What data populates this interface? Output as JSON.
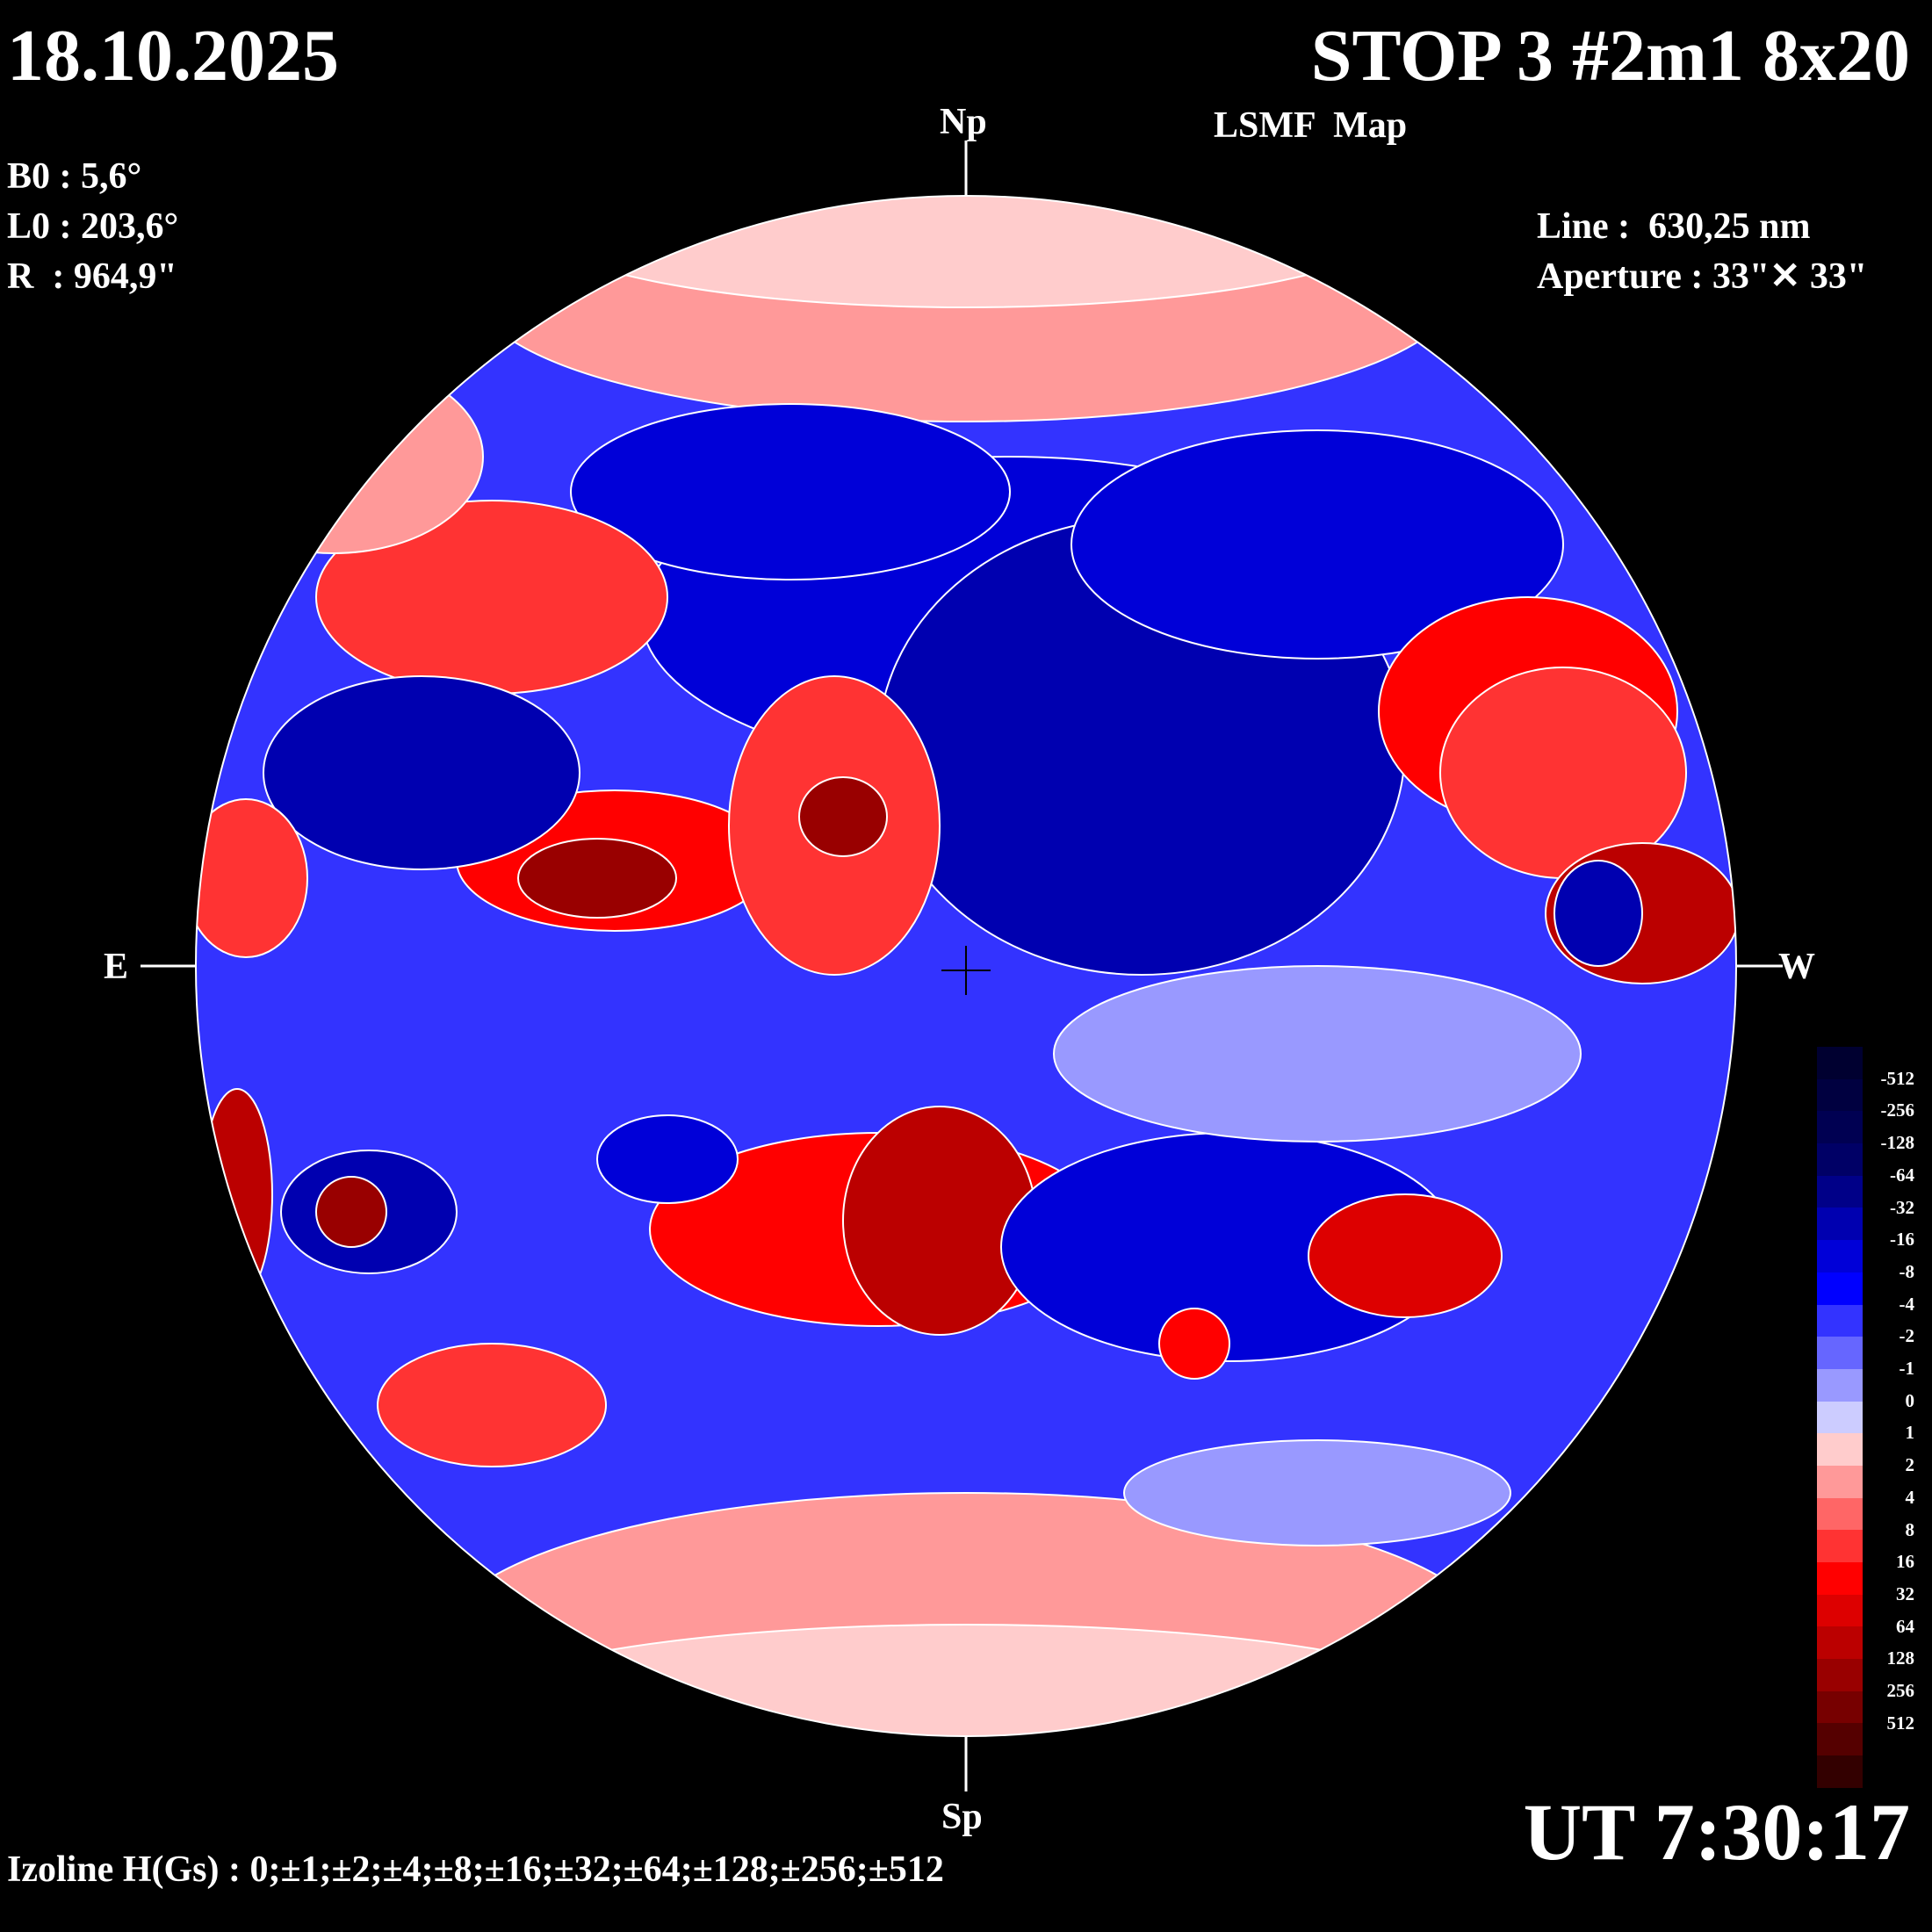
{
  "header": {
    "date": "18.10.2025",
    "title": "STOP 3 #2m1 8x20",
    "subtitle": "LSMF  Map",
    "b0": "B0 : 5,6°",
    "l0": "L0 : 203,6°",
    "r": "R  : 964,9\"",
    "line": "Line :  630,25 nm",
    "aperture": "Aperture : 33\"✕ 33\""
  },
  "directions": {
    "north": "Np",
    "south": "Sp",
    "east": "E",
    "west": "W"
  },
  "footer": {
    "izoline": "Izoline H(Gs) : 0;±1;±2;±4;±8;±16;±32;±64;±128;±256;±512",
    "time": "UT 7:30:17"
  },
  "colorbar": {
    "labels": [
      "-512",
      "-256",
      "-128",
      "-64",
      "-32",
      "-16",
      "-8",
      "-4",
      "-2",
      "-1",
      "0",
      "1",
      "2",
      "4",
      "8",
      "16",
      "32",
      "64",
      "128",
      "256",
      "512"
    ],
    "colors": [
      "#000030",
      "#000040",
      "#000052",
      "#000066",
      "#000088",
      "#0000b0",
      "#0000d8",
      "#0000ff",
      "#3333ff",
      "#6666ff",
      "#9999ff",
      "#ccccff",
      "#ffcccc",
      "#ff9999",
      "#ff6666",
      "#ff3333",
      "#ff0000",
      "#dd0000",
      "#bb0000",
      "#990000",
      "#770000",
      "#550000",
      "#330000"
    ]
  }
}
